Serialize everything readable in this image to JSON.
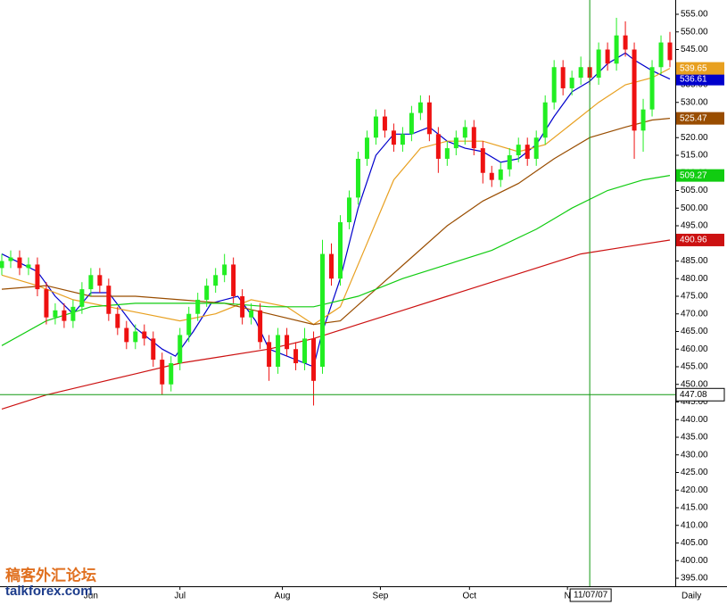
{
  "chart_data": {
    "type": "candlestick",
    "ylim": [
      392.72,
      559.05
    ],
    "xlim": [
      -0.4,
      151.2
    ],
    "yticks": [
      {
        "value": 395,
        "label": "395.00"
      },
      {
        "value": 400,
        "label": "400.00"
      },
      {
        "value": 405,
        "label": "405.00"
      },
      {
        "value": 410,
        "label": "410.00"
      },
      {
        "value": 415,
        "label": "415.00"
      },
      {
        "value": 420,
        "label": "420.00"
      },
      {
        "value": 425,
        "label": "425.00"
      },
      {
        "value": 430,
        "label": "430.00"
      },
      {
        "value": 435,
        "label": "435.00"
      },
      {
        "value": 440,
        "label": "440.00"
      },
      {
        "value": 445,
        "label": "445.00"
      },
      {
        "value": 450,
        "label": "450.00"
      },
      {
        "value": 455,
        "label": "455.00"
      },
      {
        "value": 460,
        "label": "460.00"
      },
      {
        "value": 465,
        "label": "465.00"
      },
      {
        "value": 470,
        "label": "470.00"
      },
      {
        "value": 475,
        "label": "475.00"
      },
      {
        "value": 480,
        "label": "480.00"
      },
      {
        "value": 485,
        "label": "485.00"
      },
      {
        "value": 490,
        "label": "490.00"
      },
      {
        "value": 495,
        "label": "495.00"
      },
      {
        "value": 500,
        "label": "500.00"
      },
      {
        "value": 505,
        "label": "505.00"
      },
      {
        "value": 510,
        "label": "510.00"
      },
      {
        "value": 515,
        "label": "515.00"
      },
      {
        "value": 520,
        "label": "520.00"
      },
      {
        "value": 525,
        "label": "525.00"
      },
      {
        "value": 530,
        "label": "530.00"
      },
      {
        "value": 535,
        "label": "535.00"
      },
      {
        "value": 540,
        "label": "540.00"
      },
      {
        "value": 545,
        "label": "545.00"
      },
      {
        "value": 550,
        "label": "550.00"
      },
      {
        "value": 555,
        "label": "555.00"
      }
    ],
    "xticks": [
      {
        "value": 20,
        "label": "Jun"
      },
      {
        "value": 40,
        "label": "Jul"
      },
      {
        "value": 63,
        "label": "Aug"
      },
      {
        "value": 85,
        "label": "Sep"
      },
      {
        "value": 105,
        "label": "Oct"
      },
      {
        "value": 127,
        "label": "N"
      }
    ],
    "x_axis_label": "Daily",
    "up_color": "#22ee22",
    "down_color": "#ee1111",
    "x": [
      0,
      2,
      4,
      6,
      8,
      10,
      12,
      14,
      16,
      18,
      20,
      22,
      24,
      26,
      28,
      30,
      32,
      34,
      36,
      38,
      40,
      42,
      44,
      46,
      48,
      50,
      52,
      54,
      56,
      58,
      60,
      62,
      64,
      66,
      68,
      70,
      72,
      74,
      76,
      78,
      80,
      82,
      84,
      86,
      88,
      90,
      92,
      94,
      96,
      98,
      100,
      102,
      104,
      106,
      108,
      110,
      112,
      114,
      116,
      118,
      120,
      122,
      124,
      126,
      128,
      130,
      132,
      134,
      136,
      138,
      140,
      142,
      144,
      146,
      148,
      150
    ],
    "candles": [
      [
        483,
        487,
        481,
        485
      ],
      [
        485,
        488,
        483,
        486
      ],
      [
        486,
        488,
        481,
        483
      ],
      [
        483,
        486,
        481,
        484
      ],
      [
        484,
        486,
        475,
        477
      ],
      [
        477,
        479,
        467,
        469
      ],
      [
        469,
        473,
        467,
        471
      ],
      [
        471,
        473,
        466,
        468
      ],
      [
        468,
        474,
        466,
        472
      ],
      [
        472,
        479,
        470,
        477
      ],
      [
        477,
        483,
        475,
        481
      ],
      [
        481,
        483,
        476,
        478
      ],
      [
        478,
        480,
        468,
        470
      ],
      [
        470,
        472,
        464,
        466
      ],
      [
        466,
        468,
        460,
        462
      ],
      [
        462,
        467,
        460,
        465
      ],
      [
        465,
        467,
        461,
        463
      ],
      [
        463,
        465,
        455,
        457
      ],
      [
        457,
        459,
        447,
        450
      ],
      [
        450,
        458,
        448,
        456
      ],
      [
        456,
        466,
        454,
        464
      ],
      [
        464,
        472,
        462,
        470
      ],
      [
        470,
        476,
        468,
        474
      ],
      [
        474,
        480,
        472,
        478
      ],
      [
        478,
        483,
        476,
        481
      ],
      [
        481,
        487,
        479,
        484
      ],
      [
        484,
        486,
        473,
        475
      ],
      [
        475,
        477,
        467,
        469
      ],
      [
        469,
        473,
        467,
        471
      ],
      [
        471,
        473,
        460,
        462
      ],
      [
        462,
        464,
        451,
        455
      ],
      [
        455,
        466,
        453,
        464
      ],
      [
        464,
        466,
        458,
        460
      ],
      [
        460,
        462,
        454,
        456
      ],
      [
        456,
        466,
        454,
        463
      ],
      [
        463,
        465,
        444,
        451
      ],
      [
        455,
        491,
        453,
        487
      ],
      [
        487,
        490,
        478,
        480
      ],
      [
        480,
        498,
        478,
        496
      ],
      [
        496,
        505,
        494,
        503
      ],
      [
        503,
        516,
        501,
        514
      ],
      [
        514,
        522,
        512,
        520
      ],
      [
        520,
        528,
        518,
        526
      ],
      [
        526,
        528,
        520,
        522
      ],
      [
        522,
        524,
        516,
        518
      ],
      [
        518,
        523,
        516,
        521
      ],
      [
        521,
        529,
        519,
        527
      ],
      [
        527,
        532,
        525,
        530
      ],
      [
        530,
        532,
        519,
        521
      ],
      [
        521,
        523,
        510,
        514
      ],
      [
        514,
        519,
        512,
        517
      ],
      [
        517,
        522,
        515,
        520
      ],
      [
        520,
        525,
        518,
        523
      ],
      [
        523,
        525,
        515,
        517
      ],
      [
        517,
        519,
        507,
        510
      ],
      [
        510,
        512,
        506,
        508
      ],
      [
        508,
        513,
        506,
        511
      ],
      [
        511,
        517,
        509,
        515
      ],
      [
        515,
        520,
        513,
        518
      ],
      [
        518,
        520,
        512,
        514
      ],
      [
        514,
        522,
        512,
        520
      ],
      [
        520,
        532,
        518,
        530
      ],
      [
        530,
        542,
        528,
        540
      ],
      [
        540,
        542,
        532,
        534
      ],
      [
        534,
        539,
        532,
        537
      ],
      [
        537,
        543,
        535,
        540
      ],
      [
        540,
        542,
        535,
        537
      ],
      [
        537,
        547,
        535,
        545
      ],
      [
        545,
        547,
        539,
        541
      ],
      [
        541,
        554,
        539,
        549
      ],
      [
        549,
        553,
        543,
        545
      ],
      [
        545,
        547,
        514,
        522
      ],
      [
        522,
        531,
        516,
        528
      ],
      [
        528,
        542,
        526,
        540
      ],
      [
        540,
        549,
        538,
        547
      ],
      [
        547,
        550,
        540,
        542
      ]
    ],
    "averages": [
      {
        "color": "#0000cc",
        "x": [
          0,
          8,
          12,
          16,
          20,
          24,
          30,
          36,
          39,
          43,
          47,
          53,
          57,
          60,
          64,
          70,
          72,
          76,
          80,
          84,
          88,
          92,
          96,
          100,
          104,
          108,
          112,
          116,
          120,
          124,
          128,
          132,
          136,
          140,
          142,
          146,
          150
        ],
        "values": [
          487,
          482,
          475,
          470,
          476,
          476,
          466,
          460,
          458,
          465,
          473,
          475,
          468,
          460,
          458,
          455,
          465,
          480,
          500,
          515,
          521,
          521,
          523,
          519,
          517,
          516,
          513,
          514,
          518,
          526,
          533,
          536,
          541,
          544,
          542,
          539,
          536.61
        ],
        "last": 536.61
      },
      {
        "color": "#e8a020",
        "x": [
          0,
          8,
          16,
          24,
          32,
          40,
          48,
          56,
          64,
          70,
          76,
          82,
          88,
          94,
          100,
          108,
          116,
          122,
          128,
          134,
          140,
          146,
          150
        ],
        "values": [
          481,
          478,
          474,
          472,
          470,
          468,
          470,
          474,
          472,
          467,
          472,
          490,
          508,
          517,
          519,
          519,
          516,
          518,
          524,
          530,
          535,
          537,
          539.65
        ],
        "last": 539.65
      },
      {
        "color": "#994d00",
        "x": [
          0,
          10,
          20,
          30,
          40,
          50,
          60,
          70,
          76,
          84,
          92,
          100,
          108,
          116,
          124,
          132,
          140,
          146,
          150
        ],
        "values": [
          477,
          478,
          475,
          475,
          474,
          473,
          470,
          467,
          468,
          477,
          486,
          495,
          502,
          507,
          514,
          520,
          523,
          525,
          525.47
        ],
        "last": 525.47
      },
      {
        "color": "#11cc11",
        "x": [
          0,
          10,
          20,
          30,
          40,
          50,
          60,
          70,
          80,
          90,
          100,
          110,
          120,
          128,
          136,
          144,
          150
        ],
        "values": [
          461,
          468,
          472,
          473,
          473,
          473,
          472,
          472,
          475,
          480,
          484,
          488,
          494,
          500,
          505,
          508,
          509.27
        ],
        "last": 509.27
      },
      {
        "color": "#cc1111",
        "x": [
          0,
          10,
          20,
          30,
          40,
          50,
          60,
          70,
          80,
          90,
          100,
          110,
          120,
          130,
          140,
          150
        ],
        "values": [
          443,
          447,
          450,
          453,
          456,
          458,
          460,
          463,
          467,
          471,
          475,
          479,
          483,
          487,
          489,
          490.96
        ],
        "last": 490.96
      }
    ],
    "crosshair": {
      "x": 132,
      "x_label": "11/07/07",
      "y": 447.08
    },
    "watermark": {
      "cn": "稿客外汇论坛",
      "site": "talkforex.com"
    }
  }
}
